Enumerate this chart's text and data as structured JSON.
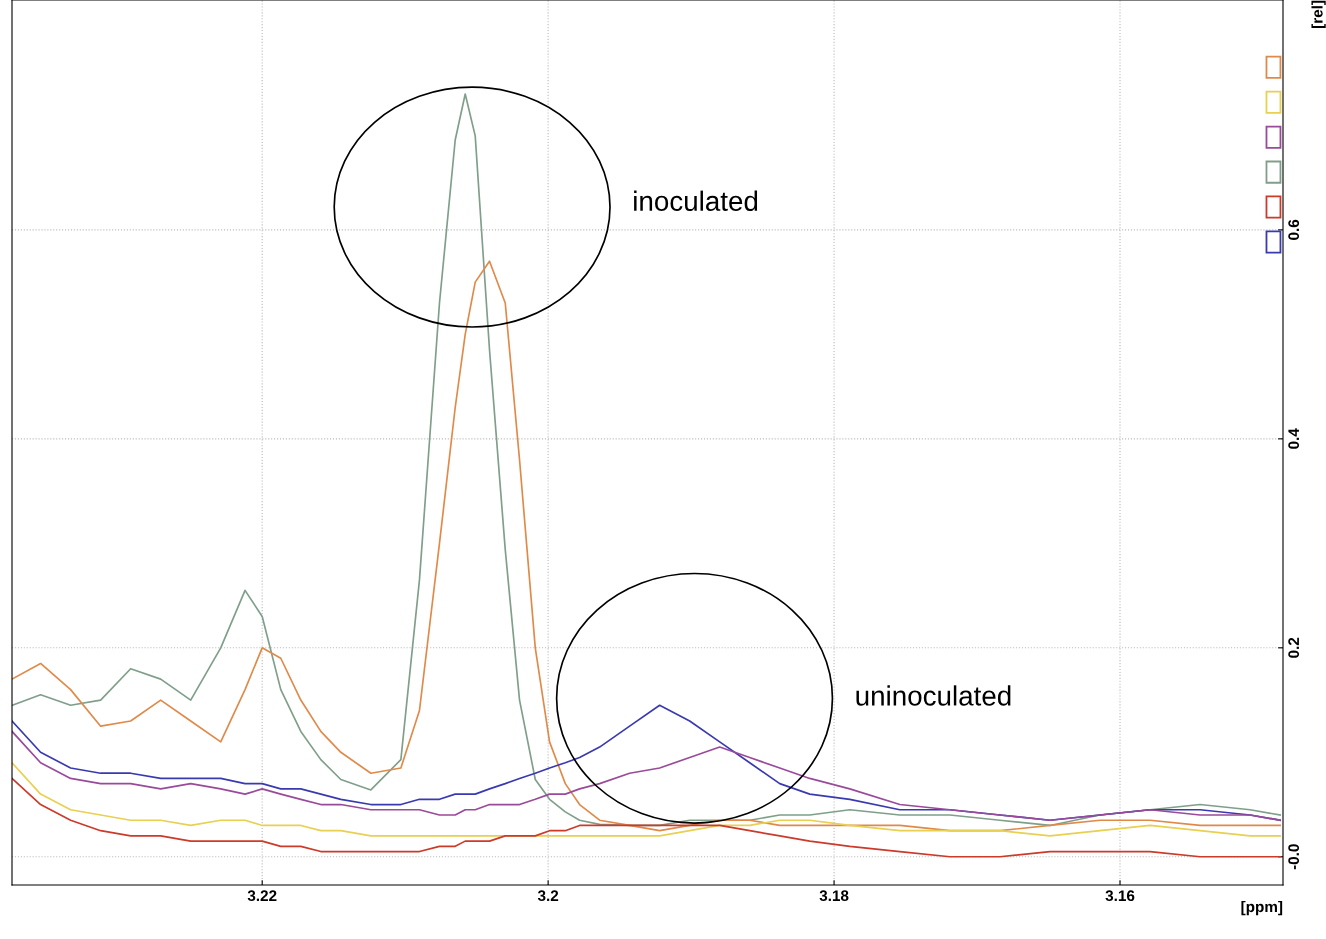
{
  "chart_data": {
    "type": "line",
    "xlabel": "[ppm]",
    "ylabel": "[rel]",
    "x": [
      3.2375,
      3.2355,
      3.2334,
      3.2313,
      3.2292,
      3.2271,
      3.225,
      3.2229,
      3.2212,
      3.22,
      3.2187,
      3.2173,
      3.2159,
      3.2145,
      3.2124,
      3.2103,
      3.209,
      3.2076,
      3.2065,
      3.2058,
      3.2051,
      3.2041,
      3.203,
      3.202,
      3.2009,
      3.1999,
      3.1988,
      3.1978,
      3.1964,
      3.1943,
      3.1922,
      3.1901,
      3.188,
      3.1859,
      3.1838,
      3.1817,
      3.1789,
      3.1754,
      3.1719,
      3.1684,
      3.1649,
      3.1614,
      3.1579,
      3.1544,
      3.1509,
      3.1488
    ],
    "series": [
      {
        "color": "#7f9f8a",
        "values": [
          0.145,
          0.155,
          0.145,
          0.15,
          0.18,
          0.17,
          0.15,
          0.2,
          0.255,
          0.23,
          0.16,
          0.12,
          0.093,
          0.074,
          0.064,
          0.093,
          0.265,
          0.53,
          0.686,
          0.73,
          0.69,
          0.485,
          0.294,
          0.15,
          0.074,
          0.055,
          0.043,
          0.035,
          0.031,
          0.03,
          0.03,
          0.035,
          0.035,
          0.035,
          0.04,
          0.04,
          0.045,
          0.04,
          0.04,
          0.035,
          0.03,
          0.04,
          0.045,
          0.05,
          0.045,
          0.04
        ]
      },
      {
        "color": "#e08a4a",
        "values": [
          0.17,
          0.185,
          0.16,
          0.125,
          0.13,
          0.15,
          0.13,
          0.11,
          0.16,
          0.2,
          0.19,
          0.15,
          0.12,
          0.1,
          0.08,
          0.085,
          0.14,
          0.3,
          0.43,
          0.5,
          0.55,
          0.57,
          0.53,
          0.38,
          0.2,
          0.11,
          0.07,
          0.05,
          0.035,
          0.03,
          0.025,
          0.03,
          0.035,
          0.035,
          0.03,
          0.03,
          0.03,
          0.03,
          0.025,
          0.025,
          0.03,
          0.035,
          0.035,
          0.03,
          0.03,
          0.03
        ]
      },
      {
        "color": "#3a3ab0",
        "values": [
          0.13,
          0.1,
          0.085,
          0.08,
          0.08,
          0.075,
          0.075,
          0.075,
          0.07,
          0.07,
          0.065,
          0.065,
          0.06,
          0.055,
          0.05,
          0.05,
          0.055,
          0.055,
          0.06,
          0.06,
          0.06,
          0.065,
          0.07,
          0.075,
          0.08,
          0.085,
          0.09,
          0.095,
          0.105,
          0.125,
          0.145,
          0.13,
          0.11,
          0.09,
          0.07,
          0.06,
          0.055,
          0.045,
          0.045,
          0.04,
          0.035,
          0.04,
          0.045,
          0.045,
          0.04,
          0.035
        ]
      },
      {
        "color": "#9a4a9a",
        "values": [
          0.12,
          0.09,
          0.075,
          0.07,
          0.07,
          0.065,
          0.07,
          0.065,
          0.06,
          0.065,
          0.06,
          0.055,
          0.05,
          0.05,
          0.045,
          0.045,
          0.045,
          0.04,
          0.04,
          0.045,
          0.045,
          0.05,
          0.05,
          0.05,
          0.055,
          0.06,
          0.06,
          0.065,
          0.07,
          0.08,
          0.085,
          0.095,
          0.105,
          0.095,
          0.085,
          0.075,
          0.065,
          0.05,
          0.045,
          0.04,
          0.035,
          0.04,
          0.045,
          0.04,
          0.04,
          0.035
        ]
      },
      {
        "color": "#e8d050",
        "values": [
          0.09,
          0.06,
          0.045,
          0.04,
          0.035,
          0.035,
          0.03,
          0.035,
          0.035,
          0.03,
          0.03,
          0.03,
          0.025,
          0.025,
          0.02,
          0.02,
          0.02,
          0.02,
          0.02,
          0.02,
          0.02,
          0.02,
          0.02,
          0.02,
          0.02,
          0.02,
          0.02,
          0.02,
          0.02,
          0.02,
          0.02,
          0.025,
          0.03,
          0.03,
          0.035,
          0.035,
          0.03,
          0.025,
          0.025,
          0.025,
          0.02,
          0.025,
          0.03,
          0.025,
          0.02,
          0.02
        ]
      },
      {
        "color": "#cc3a2a",
        "values": [
          0.075,
          0.05,
          0.035,
          0.025,
          0.02,
          0.02,
          0.015,
          0.015,
          0.015,
          0.015,
          0.01,
          0.01,
          0.005,
          0.005,
          0.005,
          0.005,
          0.005,
          0.01,
          0.01,
          0.015,
          0.015,
          0.015,
          0.02,
          0.02,
          0.02,
          0.025,
          0.025,
          0.03,
          0.03,
          0.03,
          0.03,
          0.03,
          0.03,
          0.025,
          0.02,
          0.015,
          0.01,
          0.005,
          0.0,
          0.0,
          0.005,
          0.005,
          0.005,
          0.0,
          0.0,
          0.0
        ]
      }
    ],
    "xlim": [
      3.2375,
      3.1486
    ],
    "ylim": [
      -0.027,
      0.82
    ],
    "xticks": [
      3.22,
      3.2,
      3.18,
      3.16
    ],
    "yticks": [
      {
        "value": 0,
        "label": "-0.0"
      },
      0.2,
      0.4,
      0.6
    ],
    "grid": true,
    "marker": "none",
    "line_style": "solid",
    "annotations": [
      "inoculated",
      "uninoculated"
    ]
  }
}
